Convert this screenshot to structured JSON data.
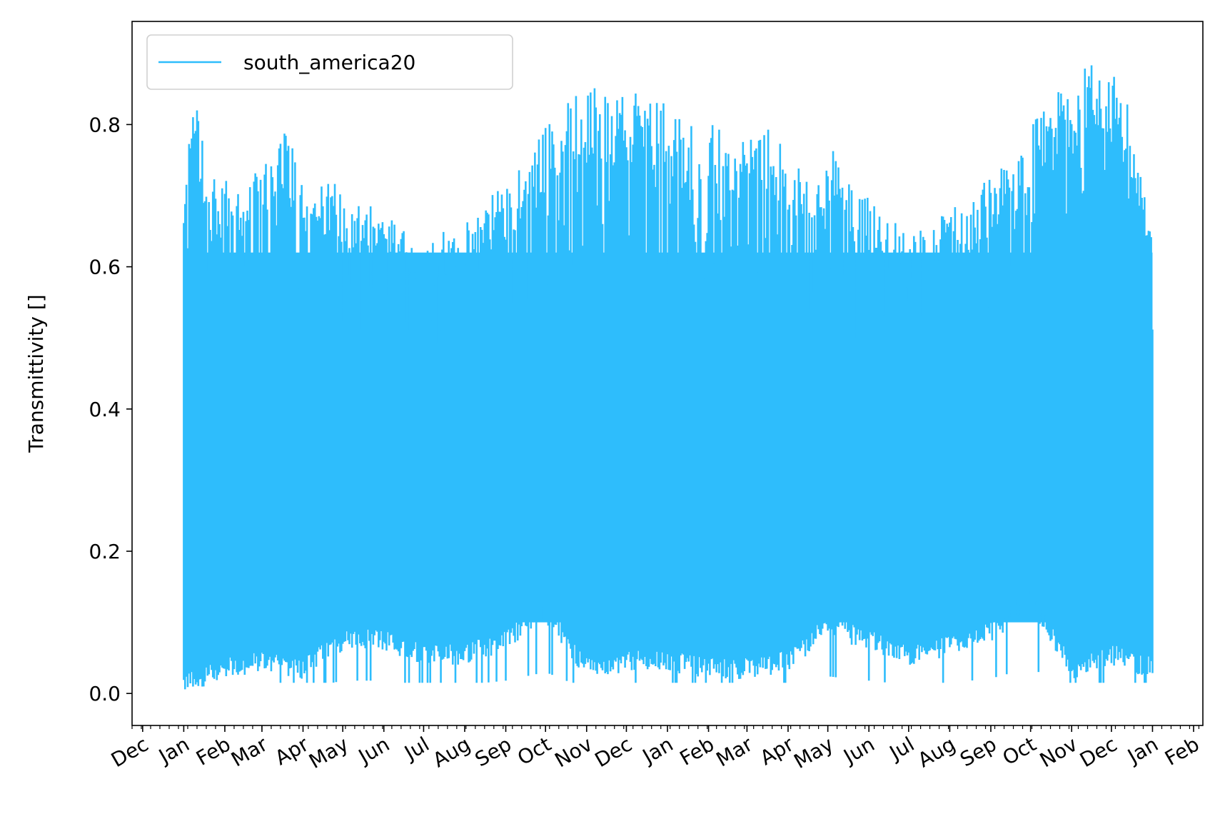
{
  "chart_data": {
    "type": "line",
    "title": "",
    "xlabel": "",
    "ylabel": "Transmittivity []",
    "ylim": [
      -0.045,
      0.945
    ],
    "xlim": [
      "2018-11-23",
      "2021-02-08"
    ],
    "yticks": [
      0.0,
      0.2,
      0.4,
      0.6,
      0.8
    ],
    "ytick_labels": [
      "0.0",
      "0.2",
      "0.4",
      "0.6",
      "0.8"
    ],
    "xtick_labels": [
      {
        "date": "2018-12-01",
        "label": "Dec"
      },
      {
        "date": "2019-01-01",
        "label": "Jan"
      },
      {
        "date": "2019-02-01",
        "label": "Feb"
      },
      {
        "date": "2019-03-01",
        "label": "Mar"
      },
      {
        "date": "2019-04-01",
        "label": "Apr"
      },
      {
        "date": "2019-05-01",
        "label": "May"
      },
      {
        "date": "2019-06-01",
        "label": "Jun"
      },
      {
        "date": "2019-07-01",
        "label": "Jul"
      },
      {
        "date": "2019-08-01",
        "label": "Aug"
      },
      {
        "date": "2019-09-01",
        "label": "Sep"
      },
      {
        "date": "2019-10-01",
        "label": "Oct"
      },
      {
        "date": "2019-11-01",
        "label": "Nov"
      },
      {
        "date": "2019-12-01",
        "label": "Dec"
      },
      {
        "date": "2020-01-01",
        "label": "Jan"
      },
      {
        "date": "2020-02-01",
        "label": "Feb"
      },
      {
        "date": "2020-03-01",
        "label": "Mar"
      },
      {
        "date": "2020-04-01",
        "label": "Apr"
      },
      {
        "date": "2020-05-01",
        "label": "May"
      },
      {
        "date": "2020-06-01",
        "label": "Jun"
      },
      {
        "date": "2020-07-01",
        "label": "Jul"
      },
      {
        "date": "2020-08-01",
        "label": "Aug"
      },
      {
        "date": "2020-09-01",
        "label": "Sep"
      },
      {
        "date": "2020-10-01",
        "label": "Oct"
      },
      {
        "date": "2020-11-01",
        "label": "Nov"
      },
      {
        "date": "2020-12-01",
        "label": "Dec"
      },
      {
        "date": "2021-01-01",
        "label": "Jan"
      },
      {
        "date": "2021-02-01",
        "label": "Feb"
      }
    ],
    "grid": false,
    "legend": {
      "placement": "top-left",
      "entries": [
        "south_america20"
      ]
    },
    "series": [
      {
        "name": "south_america20",
        "color": "#2ebdfc",
        "x_start": "2019-01-01",
        "x_end": "2021-01-01",
        "sampling": "hourly daytime values; envelope shown as daily range",
        "envelope_upper": [
          [
            "2019-01-01",
            0.69
          ],
          [
            "2019-01-08",
            0.87
          ],
          [
            "2019-01-20",
            0.72
          ],
          [
            "2019-02-01",
            0.73
          ],
          [
            "2019-02-15",
            0.7
          ],
          [
            "2019-03-01",
            0.75
          ],
          [
            "2019-03-15",
            0.8
          ],
          [
            "2019-04-01",
            0.74
          ],
          [
            "2019-04-15",
            0.72
          ],
          [
            "2019-05-01",
            0.72
          ],
          [
            "2019-05-15",
            0.69
          ],
          [
            "2019-06-01",
            0.68
          ],
          [
            "2019-06-15",
            0.66
          ],
          [
            "2019-07-01",
            0.64
          ],
          [
            "2019-07-15",
            0.65
          ],
          [
            "2019-08-01",
            0.66
          ],
          [
            "2019-08-15",
            0.7
          ],
          [
            "2019-09-01",
            0.72
          ],
          [
            "2019-09-15",
            0.76
          ],
          [
            "2019-10-01",
            0.8
          ],
          [
            "2019-10-15",
            0.84
          ],
          [
            "2019-11-01",
            0.86
          ],
          [
            "2019-11-15",
            0.84
          ],
          [
            "2019-12-01",
            0.85
          ],
          [
            "2019-12-15",
            0.84
          ],
          [
            "2020-01-01",
            0.83
          ],
          [
            "2020-01-15",
            0.8
          ],
          [
            "2020-02-01",
            0.81
          ],
          [
            "2020-02-15",
            0.79
          ],
          [
            "2020-03-01",
            0.78
          ],
          [
            "2020-03-15",
            0.8
          ],
          [
            "2020-04-01",
            0.76
          ],
          [
            "2020-04-15",
            0.74
          ],
          [
            "2020-05-01",
            0.78
          ],
          [
            "2020-05-15",
            0.72
          ],
          [
            "2020-06-01",
            0.7
          ],
          [
            "2020-06-15",
            0.68
          ],
          [
            "2020-07-01",
            0.64
          ],
          [
            "2020-07-15",
            0.66
          ],
          [
            "2020-08-01",
            0.68
          ],
          [
            "2020-08-15",
            0.7
          ],
          [
            "2020-09-01",
            0.73
          ],
          [
            "2020-09-15",
            0.75
          ],
          [
            "2020-10-01",
            0.8
          ],
          [
            "2020-10-15",
            0.84
          ],
          [
            "2020-11-01",
            0.86
          ],
          [
            "2020-11-15",
            0.89
          ],
          [
            "2020-12-01",
            0.88
          ],
          [
            "2020-12-15",
            0.83
          ],
          [
            "2021-01-01",
            0.7
          ]
        ],
        "envelope_lower": [
          [
            "2019-01-01",
            0.0
          ],
          [
            "2019-02-01",
            0.02
          ],
          [
            "2019-03-01",
            0.03
          ],
          [
            "2019-04-01",
            0.02
          ],
          [
            "2019-05-01",
            0.06
          ],
          [
            "2019-06-01",
            0.06
          ],
          [
            "2019-07-01",
            0.04
          ],
          [
            "2019-08-01",
            0.04
          ],
          [
            "2019-09-01",
            0.06
          ],
          [
            "2019-10-01",
            0.1
          ],
          [
            "2019-11-01",
            0.02
          ],
          [
            "2019-12-01",
            0.03
          ],
          [
            "2020-01-01",
            0.03
          ],
          [
            "2020-02-01",
            0.02
          ],
          [
            "2020-03-01",
            0.02
          ],
          [
            "2020-04-01",
            0.03
          ],
          [
            "2020-05-01",
            0.08
          ],
          [
            "2020-06-01",
            0.06
          ],
          [
            "2020-07-01",
            0.04
          ],
          [
            "2020-08-01",
            0.05
          ],
          [
            "2020-09-01",
            0.07
          ],
          [
            "2020-10-01",
            0.12
          ],
          [
            "2020-11-01",
            0.02
          ],
          [
            "2020-12-01",
            0.04
          ],
          [
            "2021-01-01",
            0.02
          ]
        ]
      }
    ]
  }
}
